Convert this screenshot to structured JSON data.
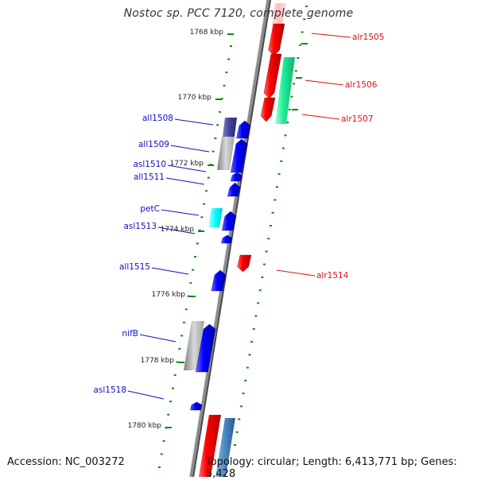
{
  "title": "Nostoc sp. PCC 7120, complete genome",
  "footer": {
    "accession": "Accession: NC_003272",
    "topology": "Topology: circular; Length: 6,413,771 bp; Genes: 5,428"
  },
  "ticks": [
    {
      "label": "1768 kbp",
      "kbp": 1768
    },
    {
      "label": "1770 kbp",
      "kbp": 1770
    },
    {
      "label": "1772 kbp",
      "kbp": 1772
    },
    {
      "label": "1774 kbp",
      "kbp": 1774
    },
    {
      "label": "1776 kbp",
      "kbp": 1776
    },
    {
      "label": "1778 kbp",
      "kbp": 1778
    },
    {
      "label": "1780 kbp",
      "kbp": 1780
    }
  ],
  "genes": [
    {
      "name": "alr1505",
      "strand": "+",
      "color": "#e01010"
    },
    {
      "name": "alr1506",
      "strand": "+",
      "color": "#e01010"
    },
    {
      "name": "alr1507",
      "strand": "+",
      "color": "#e01010"
    },
    {
      "name": "all1508",
      "strand": "-",
      "color": "#1010c0"
    },
    {
      "name": "all1509",
      "strand": "-",
      "color": "#1010c0"
    },
    {
      "name": "asl1510",
      "strand": "-",
      "color": "#1010c0"
    },
    {
      "name": "all1511",
      "strand": "-",
      "color": "#1010c0"
    },
    {
      "name": "petC",
      "strand": "-",
      "color": "#1010c0"
    },
    {
      "name": "asl1513",
      "strand": "-",
      "color": "#1010c0"
    },
    {
      "name": "alr1514",
      "strand": "+",
      "color": "#e01010"
    },
    {
      "name": "all1515",
      "strand": "-",
      "color": "#1010c0"
    },
    {
      "name": "nifB",
      "strand": "-",
      "color": "#1010c0"
    },
    {
      "name": "asl1518",
      "strand": "-",
      "color": "#1010c0"
    }
  ],
  "colors": {
    "forward": "#e01010",
    "reverse": "#1010c0",
    "backbone": "#777777",
    "dots": "#118811"
  }
}
